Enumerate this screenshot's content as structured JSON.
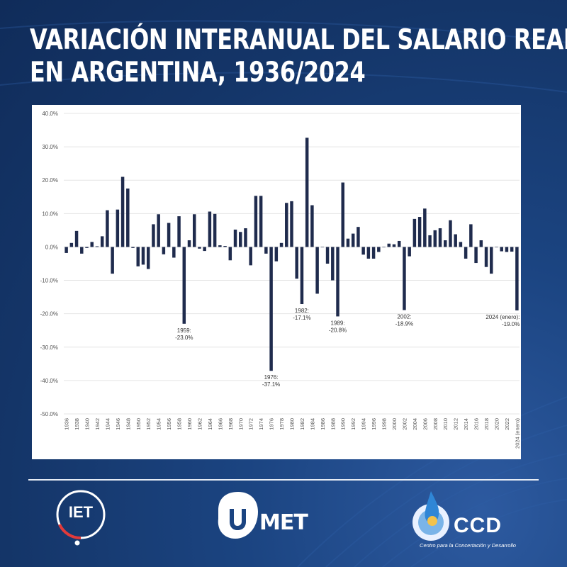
{
  "title_lines": [
    "VARIACIÓN INTERANUAL DEL SALARIO REAL",
    "EN ARGENTINA, 1936/2024"
  ],
  "colors": {
    "background": "#163a6e",
    "bar": "#1f2b4d",
    "grid": "#e4e4e4",
    "panel": "#ffffff"
  },
  "chart_data": {
    "type": "bar",
    "title": "VARIACIÓN INTERANUAL DEL SALARIO REAL EN ARGENTINA, 1936/2024",
    "xlabel": "",
    "ylabel": "",
    "ylim": [
      -50,
      40
    ],
    "yticks": [
      40,
      30,
      20,
      10,
      0,
      -10,
      -20,
      -30,
      -40,
      -50
    ],
    "ytick_labels": [
      "40.0%",
      "30.0%",
      "20.0%",
      "10.0%",
      "0.0%",
      "-10.0%",
      "-20.0%",
      "-30.0%",
      "-40.0%",
      "-50.0%"
    ],
    "grid": true,
    "legend": false,
    "categories": [
      "1936",
      "1937",
      "1938",
      "1939",
      "1940",
      "1941",
      "1942",
      "1943",
      "1944",
      "1945",
      "1946",
      "1947",
      "1948",
      "1949",
      "1950",
      "1951",
      "1952",
      "1953",
      "1954",
      "1955",
      "1956",
      "1957",
      "1958",
      "1959",
      "1960",
      "1961",
      "1962",
      "1963",
      "1964",
      "1965",
      "1966",
      "1967",
      "1968",
      "1969",
      "1970",
      "1971",
      "1972",
      "1973",
      "1974",
      "1975",
      "1976",
      "1977",
      "1978",
      "1979",
      "1980",
      "1981",
      "1982",
      "1983",
      "1984",
      "1985",
      "1986",
      "1987",
      "1988",
      "1989",
      "1990",
      "1991",
      "1992",
      "1993",
      "1994",
      "1995",
      "1996",
      "1997",
      "1998",
      "1999",
      "2000",
      "2001",
      "2002",
      "2003",
      "2004",
      "2005",
      "2006",
      "2007",
      "2008",
      "2009",
      "2010",
      "2011",
      "2012",
      "2013",
      "2014",
      "2015",
      "2016",
      "2017",
      "2018",
      "2019",
      "2020",
      "2021",
      "2022",
      "2023",
      "2024 (enero)"
    ],
    "xtick_labels": [
      "1936",
      "1938",
      "1940",
      "1942",
      "1944",
      "1946",
      "1948",
      "1950",
      "1952",
      "1954",
      "1956",
      "1958",
      "1960",
      "1962",
      "1964",
      "1966",
      "1968",
      "1970",
      "1972",
      "1974",
      "1976",
      "1978",
      "1980",
      "1982",
      "1984",
      "1986",
      "1988",
      "1990",
      "1992",
      "1994",
      "1996",
      "1998",
      "2000",
      "2002",
      "2004",
      "2006",
      "2008",
      "2010",
      "2012",
      "2014",
      "2016",
      "2018",
      "2020",
      "2022",
      "2024 (enero)"
    ],
    "values": [
      -1.8,
      1.2,
      4.8,
      -2.0,
      -0.3,
      1.5,
      0.2,
      3.2,
      11.0,
      -8.0,
      11.2,
      21.0,
      17.5,
      -0.3,
      -5.8,
      -5.3,
      -6.6,
      6.8,
      9.8,
      -2.2,
      7.2,
      -3.2,
      9.2,
      -23.0,
      2.0,
      9.8,
      -0.5,
      -1.2,
      10.6,
      9.9,
      0.5,
      0.3,
      -4.0,
      5.2,
      4.5,
      5.6,
      -5.5,
      15.3,
      15.3,
      -2.0,
      -37.1,
      -4.3,
      1.2,
      13.2,
      13.7,
      -9.5,
      -17.1,
      32.7,
      12.5,
      -14.0,
      0.0,
      -5.0,
      -10.0,
      -20.8,
      19.3,
      2.5,
      4.0,
      6.0,
      -2.3,
      -3.5,
      -3.5,
      -1.5,
      0.0,
      1.0,
      0.8,
      1.8,
      -18.9,
      -2.8,
      8.4,
      9.0,
      11.5,
      3.5,
      5.0,
      5.6,
      2.0,
      8.0,
      3.8,
      1.5,
      -3.5,
      6.8,
      -4.8,
      2.0,
      -6.0,
      -8.0,
      0.0,
      -1.3,
      -1.5,
      -1.4,
      -19.0
    ],
    "annotations": [
      {
        "year": "1959",
        "lines": [
          "1959:",
          "-23.0%"
        ]
      },
      {
        "year": "1976",
        "lines": [
          "1976:",
          "-37.1%"
        ]
      },
      {
        "year": "1982",
        "lines": [
          "1982:",
          "-17.1%"
        ]
      },
      {
        "year": "1989",
        "lines": [
          "1989:",
          "-20.8%"
        ]
      },
      {
        "year": "2002",
        "lines": [
          "2002:",
          "-18.9%"
        ]
      },
      {
        "year": "2024 (enero)",
        "lines": [
          "2024 (enero):",
          "-19.0%"
        ]
      }
    ]
  },
  "logos": {
    "iet": {
      "text": "IET",
      "icon": "iet-ring-logo"
    },
    "umet": {
      "text": "MET",
      "icon": "umet-logo"
    },
    "ccd": {
      "text": "CCD",
      "subtitle": "Centro para la Concertación y Desarrollo",
      "icon": "ccd-flame-logo"
    }
  }
}
